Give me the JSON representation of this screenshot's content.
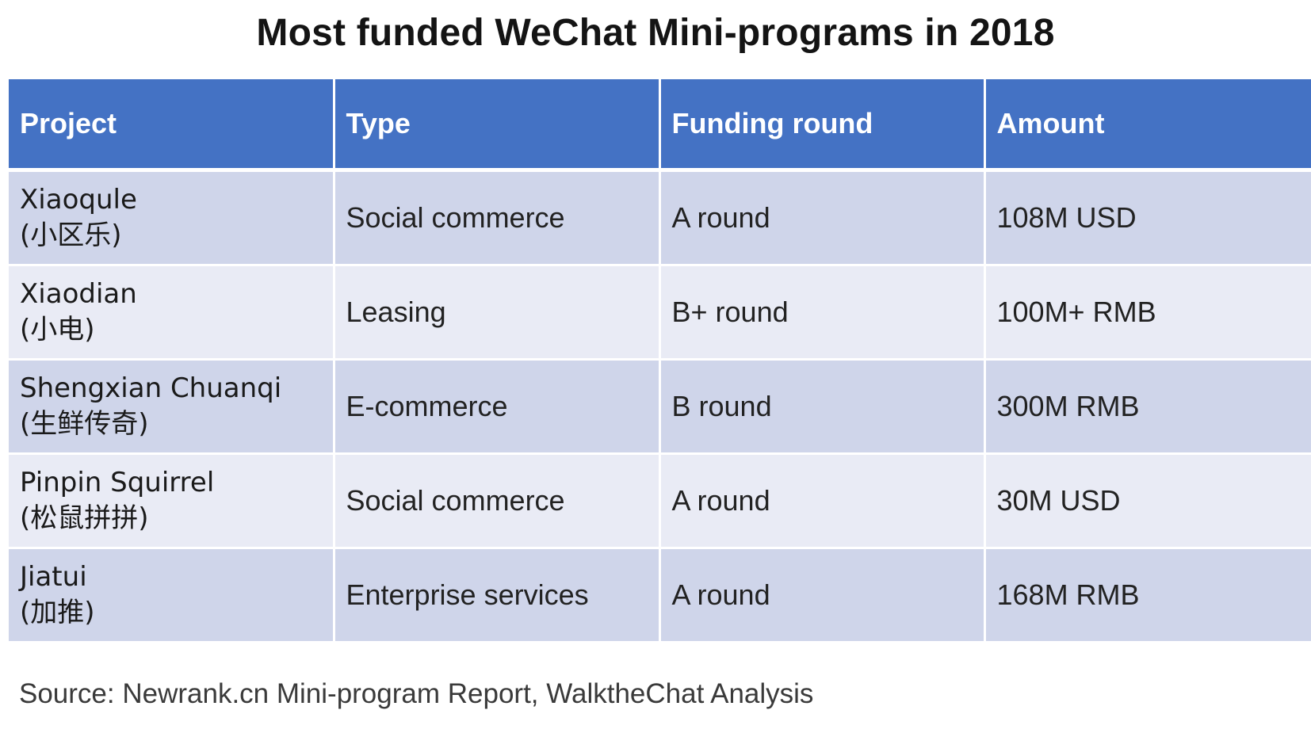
{
  "title": "Most funded WeChat Mini-programs in 2018",
  "table": {
    "headers": [
      "Project",
      "Type",
      "Funding round",
      "Amount"
    ],
    "rows": [
      {
        "project_en": "Xiaoqule",
        "project_zh": "(小区乐)",
        "type": "Social commerce",
        "round": "A round",
        "amount": "108M USD"
      },
      {
        "project_en": "Xiaodian",
        "project_zh": "(小电)",
        "type": "Leasing",
        "round": "B+ round",
        "amount": "100M+ RMB"
      },
      {
        "project_en": "Shengxian Chuanqi",
        "project_zh": "(生鲜传奇)",
        "type": "E-commerce",
        "round": "B round",
        "amount": "300M RMB"
      },
      {
        "project_en": "Pinpin Squirrel",
        "project_zh": "(松鼠拼拼)",
        "type": "Social commerce",
        "round": "A round",
        "amount": "30M USD"
      },
      {
        "project_en": "Jiatui",
        "project_zh": "(加推)",
        "type": "Enterprise services",
        "round": "A round",
        "amount": "168M RMB"
      }
    ]
  },
  "source": "Source: Newrank.cn Mini-program Report, WalktheChat Analysis",
  "colors": {
    "header_bg": "#4472c4",
    "row_dark": "#cfd5ea",
    "row_light": "#e9ebf5"
  }
}
